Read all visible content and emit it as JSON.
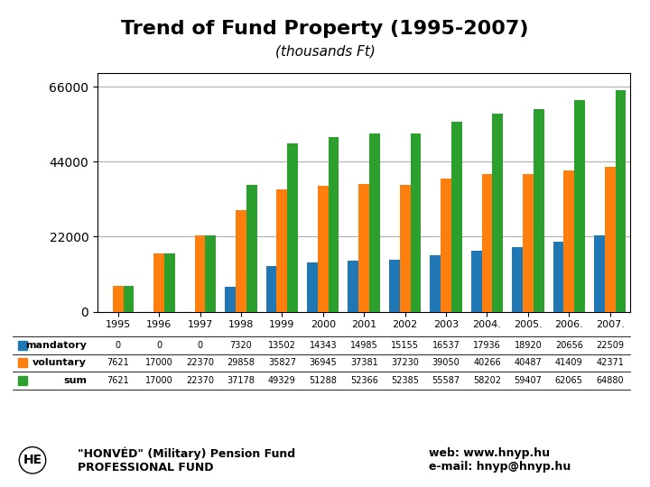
{
  "chart_data": {
    "type": "bar",
    "title": "Trend of Fund Property (1995-2007)",
    "subtitle": "(thousands Ft)",
    "categories": [
      "1995",
      "1996",
      "1997",
      "1998",
      "1999",
      "2000",
      "2001",
      "2002",
      "2003",
      "2004.",
      "2005.",
      "2006.",
      "2007."
    ],
    "series": [
      {
        "name": "mandatory",
        "values": [
          0,
          0,
          0,
          7320,
          13502,
          14343,
          14985,
          15155,
          16537,
          17936,
          18920,
          20656,
          22509
        ]
      },
      {
        "name": "voluntary",
        "values": [
          7621,
          17000,
          22370,
          29858,
          35827,
          36945,
          37381,
          37230,
          39050,
          40266,
          40487,
          41409,
          42371
        ]
      },
      {
        "name": "sum",
        "values": [
          7621,
          17000,
          22370,
          37178,
          49329,
          51288,
          52366,
          52385,
          55587,
          58202,
          59407,
          62065,
          64880
        ]
      }
    ],
    "ylim": [
      0,
      70000
    ],
    "yticks": [
      0,
      22000,
      44000,
      66000
    ],
    "grid": true,
    "annotations": [
      "\"HONVÉD\" (Military) Pension Fund\nPROFESSIONAL FUND",
      "web: www.hnyp.hu\ne-mail: hnyp@hnyp.hu",
      "HE"
    ]
  }
}
